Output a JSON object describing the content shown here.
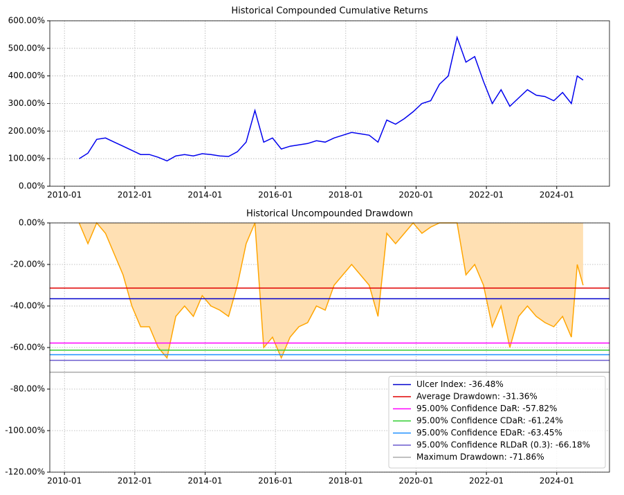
{
  "chart_data": [
    {
      "type": "line",
      "title": "Historical Compounded Cumulative Returns",
      "x": [
        "2010-06",
        "2010-09",
        "2010-12",
        "2011-03",
        "2011-06",
        "2011-09",
        "2011-12",
        "2012-03",
        "2012-06",
        "2012-09",
        "2012-12",
        "2013-03",
        "2013-06",
        "2013-09",
        "2013-12",
        "2014-03",
        "2014-06",
        "2014-09",
        "2014-12",
        "2015-03",
        "2015-06",
        "2015-09",
        "2015-12",
        "2016-03",
        "2016-06",
        "2016-09",
        "2016-12",
        "2017-03",
        "2017-06",
        "2017-09",
        "2017-12",
        "2018-03",
        "2018-06",
        "2018-09",
        "2018-12",
        "2019-03",
        "2019-06",
        "2019-09",
        "2019-12",
        "2020-03",
        "2020-06",
        "2020-09",
        "2020-12",
        "2021-03",
        "2021-06",
        "2021-09",
        "2021-12",
        "2022-03",
        "2022-06",
        "2022-09",
        "2022-12",
        "2023-03",
        "2023-06",
        "2023-09",
        "2023-12",
        "2024-03",
        "2024-06",
        "2024-08",
        "2024-10"
      ],
      "series": [
        {
          "color": "#0000ee",
          "values": [
            100,
            120,
            170,
            175,
            160,
            145,
            130,
            115,
            115,
            105,
            92,
            110,
            115,
            110,
            118,
            115,
            110,
            108,
            125,
            160,
            275,
            160,
            175,
            135,
            145,
            150,
            155,
            165,
            160,
            175,
            185,
            195,
            190,
            185,
            160,
            240,
            225,
            245,
            270,
            300,
            310,
            370,
            400,
            540,
            450,
            470,
            380,
            300,
            350,
            290,
            320,
            350,
            330,
            325,
            310,
            340,
            300,
            400,
            385
          ]
        }
      ],
      "xlim": [
        "2009-08",
        "2025-07"
      ],
      "xticks": [
        "2010-01",
        "2012-01",
        "2014-01",
        "2016-01",
        "2018-01",
        "2020-01",
        "2022-01",
        "2024-01"
      ],
      "ylim": [
        0,
        600
      ],
      "yticks": [
        {
          "value": 0,
          "label": "0.00%"
        },
        {
          "value": 100,
          "label": "100.00%"
        },
        {
          "value": 200,
          "label": "200.00%"
        },
        {
          "value": 300,
          "label": "300.00%"
        },
        {
          "value": 400,
          "label": "400.00%"
        },
        {
          "value": 500,
          "label": "500.00%"
        },
        {
          "value": 600,
          "label": "600.00%"
        }
      ],
      "grid": true
    },
    {
      "type": "area",
      "title": "Historical Uncompounded Drawdown",
      "x": [
        "2010-06",
        "2010-09",
        "2010-12",
        "2011-03",
        "2011-06",
        "2011-09",
        "2011-12",
        "2012-03",
        "2012-06",
        "2012-09",
        "2012-12",
        "2013-03",
        "2013-06",
        "2013-09",
        "2013-12",
        "2014-03",
        "2014-06",
        "2014-09",
        "2014-12",
        "2015-03",
        "2015-06",
        "2015-09",
        "2015-12",
        "2016-03",
        "2016-06",
        "2016-09",
        "2016-12",
        "2017-03",
        "2017-06",
        "2017-09",
        "2017-12",
        "2018-03",
        "2018-06",
        "2018-09",
        "2018-12",
        "2019-03",
        "2019-06",
        "2019-09",
        "2019-12",
        "2020-03",
        "2020-06",
        "2020-09",
        "2020-12",
        "2021-03",
        "2021-06",
        "2021-09",
        "2021-12",
        "2022-03",
        "2022-06",
        "2022-09",
        "2022-12",
        "2023-03",
        "2023-06",
        "2023-09",
        "2023-12",
        "2024-03",
        "2024-06",
        "2024-08",
        "2024-10"
      ],
      "series": [
        {
          "color": "#ffa500",
          "fill_color": "#ffe0b3",
          "values": [
            0,
            -10,
            0,
            -5,
            -15,
            -25,
            -40,
            -50,
            -50,
            -60,
            -65,
            -45,
            -40,
            -45,
            -35,
            -40,
            -42,
            -45,
            -30,
            -10,
            0,
            -60,
            -55,
            -65,
            -55,
            -50,
            -48,
            -40,
            -42,
            -30,
            -25,
            -20,
            -25,
            -30,
            -45,
            -5,
            -10,
            -5,
            0,
            -5,
            -2,
            0,
            0,
            0,
            -25,
            -20,
            -30,
            -50,
            -40,
            -60,
            -45,
            -40,
            -45,
            -48,
            -50,
            -45,
            -55,
            -20,
            -30
          ]
        }
      ],
      "hlines": [
        {
          "name": "Ulcer Index: -36.48%",
          "value": -36.48,
          "color": "#0000cd"
        },
        {
          "name": "Average Drawdown: -31.36%",
          "value": -31.36,
          "color": "#e00000"
        },
        {
          "name": "95.00% Confidence DaR: -57.82%",
          "value": -57.82,
          "color": "#ff00ff"
        },
        {
          "name": "95.00% Confidence CDaR: -61.24%",
          "value": -61.24,
          "color": "#32cd32"
        },
        {
          "name": "95.00% Confidence EDaR: -63.45%",
          "value": -63.45,
          "color": "#1e90ff"
        },
        {
          "name": "95.00% Confidence RLDaR (0.3): -66.18%",
          "value": -66.18,
          "color": "#6a5acd"
        },
        {
          "name": "Maximum Drawdown: -71.86%",
          "value": -71.86,
          "color": "#a9a9a9"
        }
      ],
      "legend": "lower right",
      "xlim": [
        "2009-08",
        "2025-07"
      ],
      "xticks": [
        "2010-01",
        "2012-01",
        "2014-01",
        "2016-01",
        "2018-01",
        "2020-01",
        "2022-01",
        "2024-01"
      ],
      "ylim": [
        -120,
        0
      ],
      "yticks": [
        {
          "value": -120,
          "label": "-120.00%"
        },
        {
          "value": -100,
          "label": "-100.00%"
        },
        {
          "value": -80,
          "label": "-80.00%"
        },
        {
          "value": -60,
          "label": "-60.00%"
        },
        {
          "value": -40,
          "label": "-40.00%"
        },
        {
          "value": -20,
          "label": "-20.00%"
        },
        {
          "value": 0,
          "label": "0.00%"
        }
      ],
      "grid": true
    }
  ]
}
